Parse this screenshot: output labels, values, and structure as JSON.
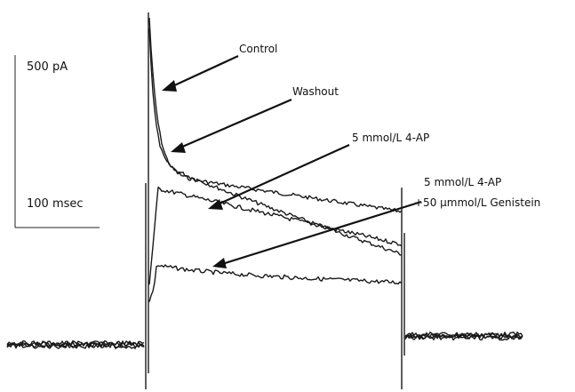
{
  "chart_data": {
    "type": "line",
    "title": "",
    "xlabel": "",
    "ylabel": "",
    "grid": false,
    "scale_bars": {
      "current": "500 pA",
      "time": "100 msec"
    },
    "series": [
      {
        "label": "Control"
      },
      {
        "label": "Washout"
      },
      {
        "label": "5 mmol/L 4-AP"
      },
      {
        "label_line1": "5 mmol/L 4-AP",
        "label_line2": "+50 μmmol/L Genistein"
      }
    ]
  }
}
